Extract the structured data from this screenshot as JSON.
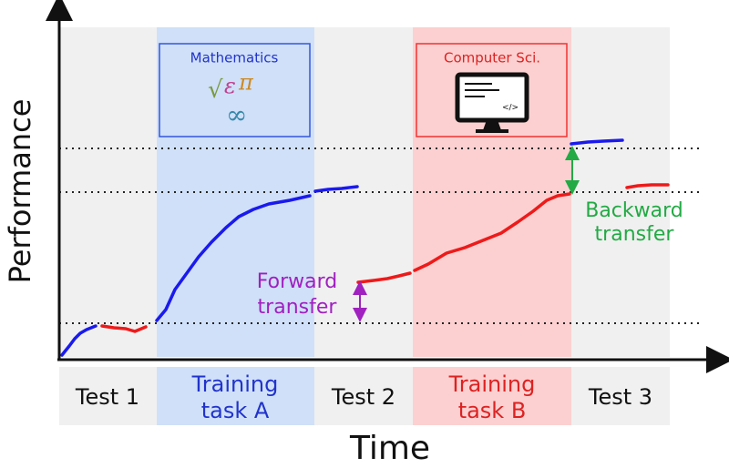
{
  "axes": {
    "y_label": "Performance",
    "x_label": "Time"
  },
  "phases": [
    {
      "lines": [
        "Test 1"
      ]
    },
    {
      "lines": [
        "Training",
        "task A"
      ]
    },
    {
      "lines": [
        "Test 2"
      ]
    },
    {
      "lines": [
        "Training",
        "task B"
      ]
    },
    {
      "lines": [
        "Test 3"
      ]
    }
  ],
  "boxes": [
    {
      "title": "Mathematics"
    },
    {
      "title": "Computer Sci.",
      "icon_text": "</>"
    }
  ],
  "annotations": [
    {
      "lines": [
        "Forward",
        "transfer"
      ]
    },
    {
      "lines": [
        "Backward",
        "transfer"
      ]
    }
  ]
}
